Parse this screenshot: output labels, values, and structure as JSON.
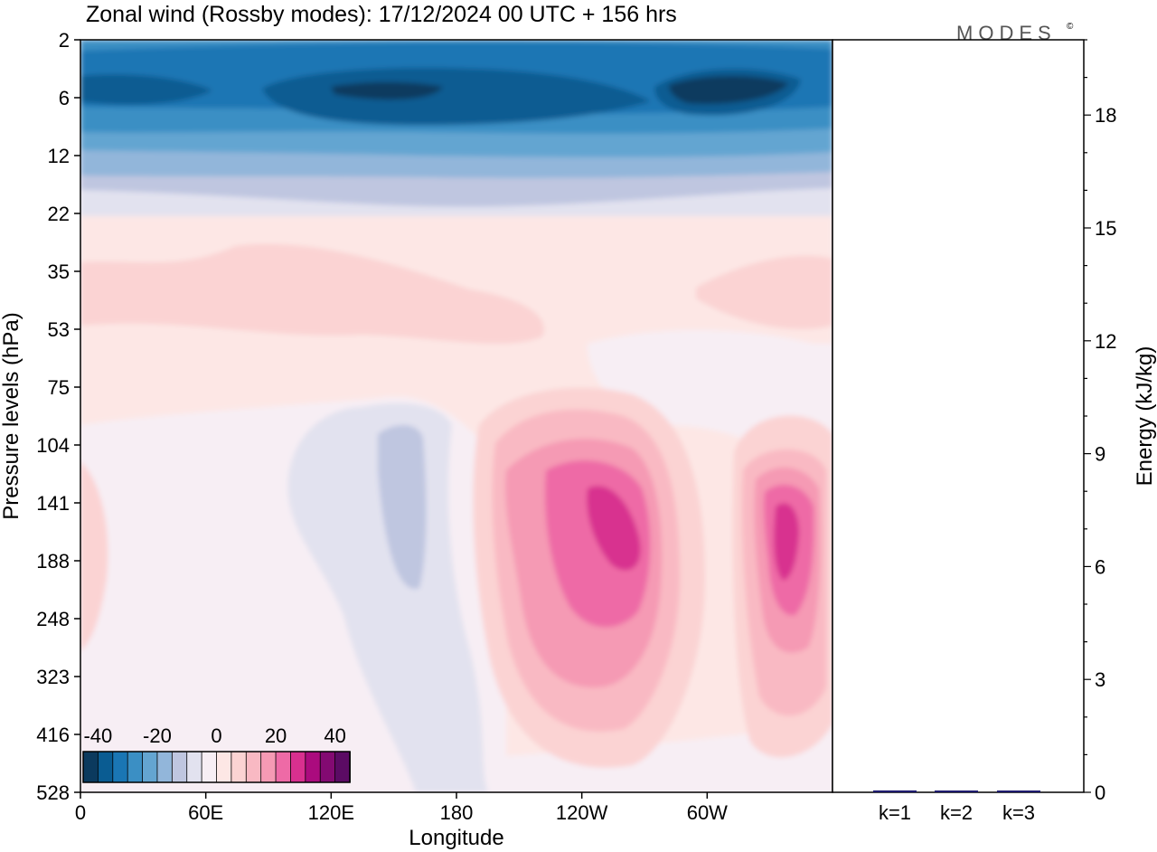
{
  "header": {
    "title": "Zonal wind (Rossby modes):  17/12/2024  00 UTC  + 156 hrs",
    "brand": "MODES",
    "brand_mark": "©"
  },
  "colors": {
    "neg_levels": [
      "#0b3a5e",
      "#0a5c92",
      "#1a76b4",
      "#3b8fc4",
      "#64a5d1",
      "#92b6da",
      "#bfc6e0",
      "#e2e2ef"
    ],
    "neutral": "#f7eef4",
    "pos_levels": [
      "#fde7e5",
      "#fbd3d3",
      "#f9b9c3",
      "#f59ab4",
      "#ee6aa6",
      "#d8308f",
      "#ab0b7e",
      "#830a72",
      "#5b0b64"
    ],
    "bar": "#1e1b6e"
  },
  "chart_data": [
    {
      "type": "heatmap",
      "title": "Zonal wind (Rossby modes):  17/12/2024  00 UTC  + 156 hrs",
      "xlabel": "Longitude",
      "ylabel": "Pressure levels (hPa)",
      "x_ticks": [
        "0",
        "60E",
        "120E",
        "180",
        "120W",
        "60W"
      ],
      "x_tick_degrees": [
        0,
        60,
        120,
        180,
        240,
        300
      ],
      "xlim": [
        0,
        360
      ],
      "y_ticks": [
        "2",
        "6",
        "12",
        "22",
        "35",
        "53",
        "75",
        "104",
        "141",
        "188",
        "248",
        "323",
        "416",
        "528"
      ],
      "colorbar": {
        "labels": [
          "-40",
          "-20",
          "0",
          "20",
          "40"
        ],
        "label_values": [
          -40,
          -20,
          0,
          20,
          40
        ],
        "range": [
          -45,
          45
        ],
        "interval": 5
      },
      "fields": [
        {
          "feature": "easterly band",
          "lon": 160,
          "level": 6,
          "value": -30
        },
        {
          "feature": "easterly core",
          "lon": 340,
          "level": 6,
          "value": -35
        },
        {
          "feature": "westerly core",
          "lon": 250,
          "level": 141,
          "value": 30
        },
        {
          "feature": "westerly core",
          "lon": 338,
          "level": 160,
          "value": 30
        },
        {
          "feature": "weak easterly",
          "lon": 160,
          "level": 141,
          "value": -10
        }
      ]
    },
    {
      "type": "bar",
      "ylabel": "Energy (kJ/kg)",
      "categories": [
        "k=1",
        "k=2",
        "k=3"
      ],
      "values": [
        0.05,
        0.02,
        0.02
      ],
      "ylim": [
        0,
        20
      ],
      "y_ticks": [
        "0",
        "3",
        "6",
        "9",
        "12",
        "15",
        "18"
      ],
      "y_tick_values": [
        0,
        3,
        6,
        9,
        12,
        15,
        18
      ]
    }
  ]
}
